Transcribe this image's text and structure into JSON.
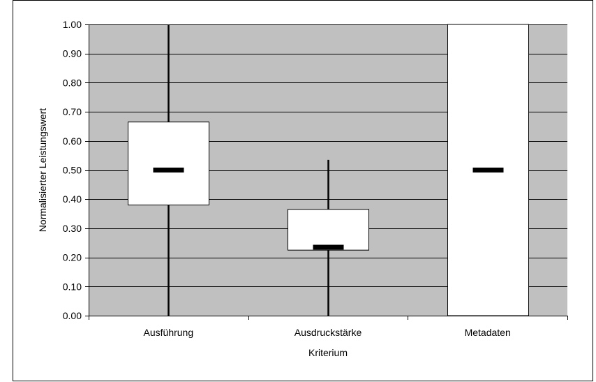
{
  "chart_data": {
    "type": "boxplot",
    "title": "",
    "xlabel": "Kriterium",
    "ylabel": "Normalisierter Leistungswert",
    "ylim": [
      0,
      1
    ],
    "yticks": [
      "0.00",
      "0.10",
      "0.20",
      "0.30",
      "0.40",
      "0.50",
      "0.60",
      "0.70",
      "0.80",
      "0.90",
      "1.00"
    ],
    "ytick_values": [
      0,
      0.1,
      0.2,
      0.3,
      0.4,
      0.5,
      0.6,
      0.7,
      0.8,
      0.9,
      1.0
    ],
    "grid": true,
    "legend": "none",
    "categories": [
      "Ausführung",
      "Ausdruckstärke",
      "Metadaten"
    ],
    "boxes": [
      {
        "category": "Ausführung",
        "whisker_low": 0.0,
        "q1": 0.38,
        "median": 0.5,
        "q3": 0.665,
        "whisker_high": 1.0
      },
      {
        "category": "Ausdruckstärke",
        "whisker_low": 0.0,
        "q1": 0.225,
        "median": 0.235,
        "q3": 0.365,
        "whisker_high": 0.535
      },
      {
        "category": "Metadaten",
        "whisker_low": 0.0,
        "q1": 0.0,
        "median": 0.5,
        "q3": 1.0,
        "whisker_high": 1.0
      }
    ],
    "colors": {
      "plot_background": "#c0c0c0",
      "box_fill": "#ffffff",
      "lines": "#000000",
      "median": "#000000"
    }
  }
}
